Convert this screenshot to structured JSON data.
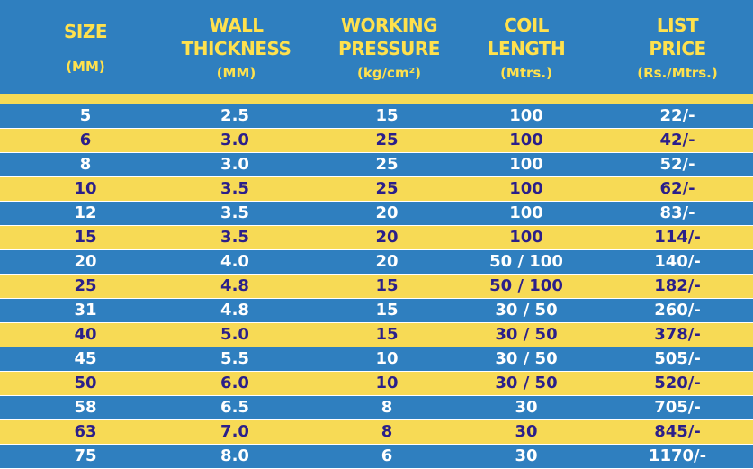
{
  "headers": [
    {
      "line1": "SIZE",
      "line2": "",
      "unit": "(MM)"
    },
    {
      "line1": "WALL",
      "line2": "THICKNESS",
      "unit": "(MM)"
    },
    {
      "line1": "WORKING",
      "line2": "PRESSURE",
      "unit": "(kg/cm²)"
    },
    {
      "line1": "COIL",
      "line2": "LENGTH",
      "unit": "(Mtrs.)"
    },
    {
      "line1": "LIST",
      "line2": "PRICE",
      "unit": "(Rs./Mtrs.)"
    }
  ],
  "rows": [
    [
      "5",
      "2.5",
      "15",
      "100",
      "22/-"
    ],
    [
      "6",
      "3.0",
      "25",
      "100",
      "42/-"
    ],
    [
      "8",
      "3.0",
      "25",
      "100",
      "52/-"
    ],
    [
      "10",
      "3.5",
      "25",
      "100",
      "62/-"
    ],
    [
      "12",
      "3.5",
      "20",
      "100",
      "83/-"
    ],
    [
      "15",
      "3.5",
      "20",
      "100",
      "114/-"
    ],
    [
      "20",
      "4.0",
      "20",
      "50 / 100",
      "140/-"
    ],
    [
      "25",
      "4.8",
      "15",
      "50 / 100",
      "182/-"
    ],
    [
      "31",
      "4.8",
      "15",
      "30 / 50",
      "260/-"
    ],
    [
      "40",
      "5.0",
      "15",
      "30 / 50",
      "378/-"
    ],
    [
      "45",
      "5.5",
      "10",
      "30 / 50",
      "505/-"
    ],
    [
      "50",
      "6.0",
      "10",
      "30 / 50",
      "520/-"
    ],
    [
      "58",
      "6.5",
      "8",
      "30",
      "705/-"
    ],
    [
      "63",
      "7.0",
      "8",
      "30",
      "845/-"
    ],
    [
      "75",
      "8.0",
      "6",
      "30",
      "1170/-"
    ]
  ],
  "colors": {
    "blue": "#2f7fbf",
    "yellow": "#f7da55",
    "header_text": "#ffe14d",
    "dark_text": "#2b1f8a"
  }
}
